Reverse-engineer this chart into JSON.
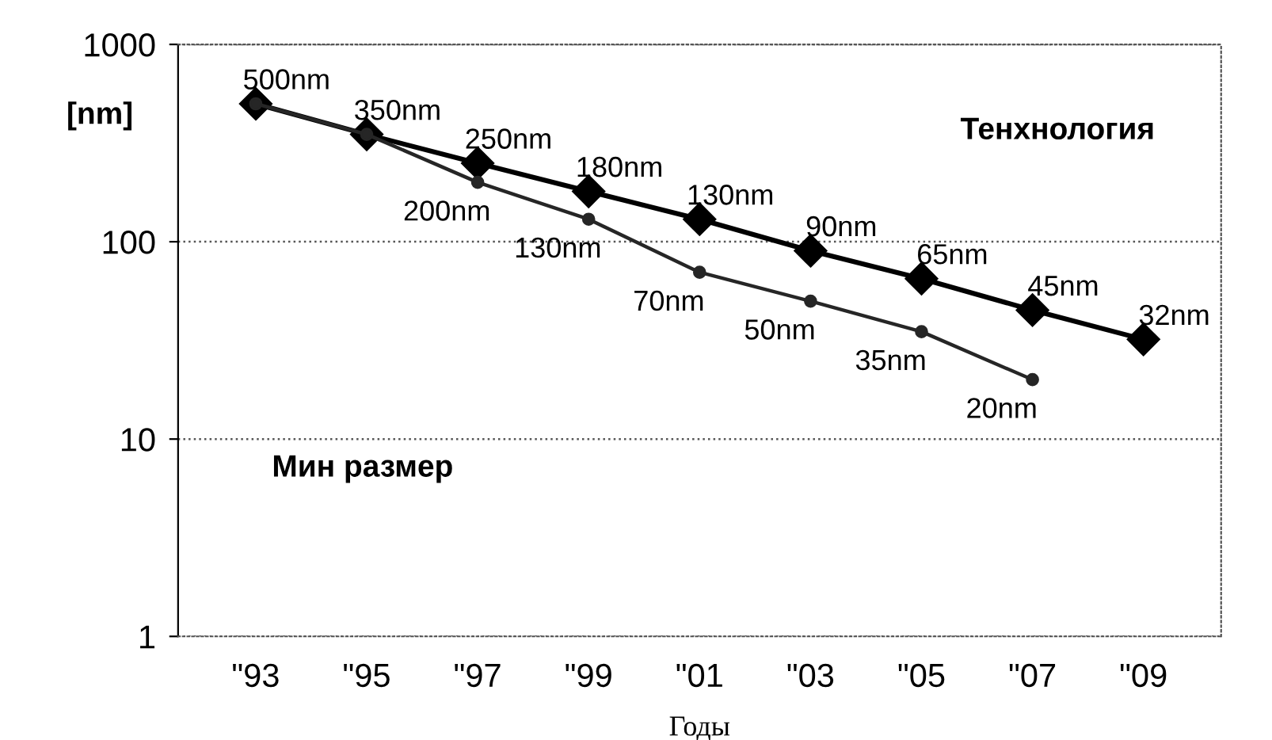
{
  "chart_data": {
    "type": "line",
    "xlabel": "Годы",
    "ylabel": "[nm]",
    "categories": [
      "\"93",
      "\"95",
      "\"97",
      "\"99",
      "\"01",
      "\"03",
      "\"05",
      "\"07",
      "\"09"
    ],
    "series": [
      {
        "color": "#000000",
        "marker": "diamond",
        "values": [
          500,
          350,
          250,
          180,
          130,
          90,
          65,
          45,
          32
        ],
        "value_labels": [
          "500nm",
          "350nm",
          "250nm",
          "180nm",
          "130nm",
          "90nm",
          "65nm",
          "45nm",
          "32nm"
        ]
      },
      {
        "color": "#262626",
        "marker": "circle",
        "values": [
          500,
          350,
          200,
          130,
          70,
          50,
          35,
          20,
          null
        ],
        "value_labels": [
          null,
          null,
          "200nm",
          "130nm",
          "70nm",
          "50nm",
          "35nm",
          "20nm",
          null
        ]
      }
    ],
    "annotations": [
      "Тенхнология",
      "Мин размер"
    ],
    "log": "y",
    "ylim": [
      1,
      1000
    ],
    "yticks": [
      1,
      10,
      100,
      1000
    ],
    "grid": "y",
    "line_style": "solid"
  }
}
